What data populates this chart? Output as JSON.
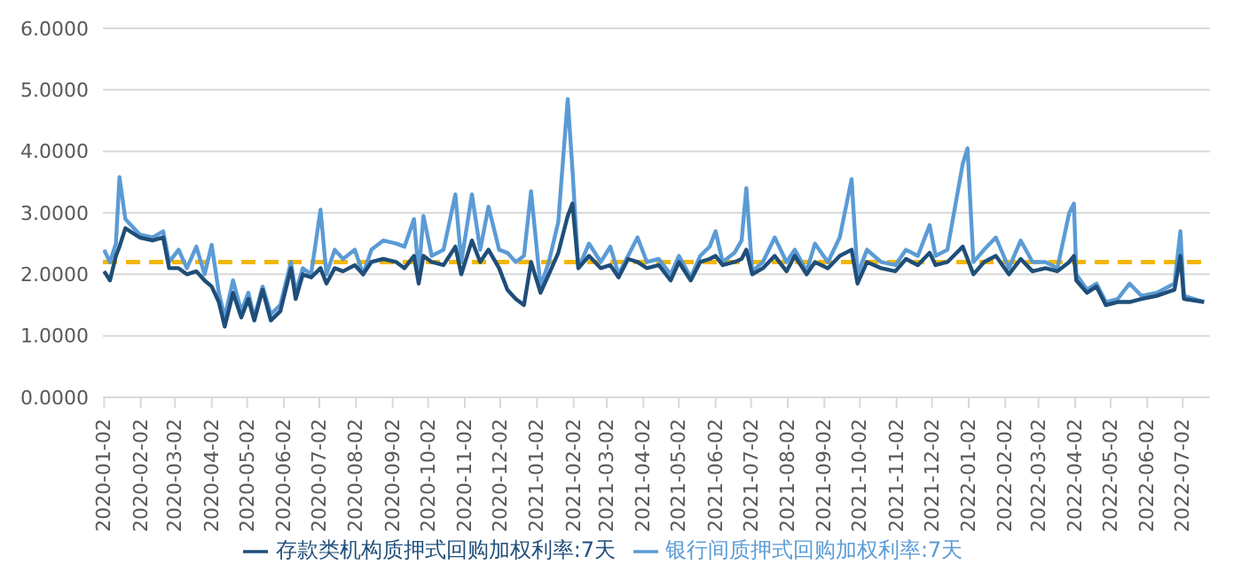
{
  "chart_data": {
    "type": "line",
    "legend": "bottom",
    "grid": "y",
    "marker": "none",
    "ylim": [
      0,
      6
    ],
    "yticks": [
      {
        "value": 0,
        "label": "0.0000"
      },
      {
        "value": 1,
        "label": "1.0000"
      },
      {
        "value": 2,
        "label": "2.0000"
      },
      {
        "value": 3,
        "label": "3.0000"
      },
      {
        "value": 4,
        "label": "4.0000"
      },
      {
        "value": 5,
        "label": "5.0000"
      },
      {
        "value": 6,
        "label": "6.0000"
      }
    ],
    "xlim": [
      "2020-01-01",
      "2022-07-25"
    ],
    "xticks": [
      "2020-01-02",
      "2020-02-02",
      "2020-03-02",
      "2020-04-02",
      "2020-05-02",
      "2020-06-02",
      "2020-07-02",
      "2020-08-02",
      "2020-09-02",
      "2020-10-02",
      "2020-11-02",
      "2020-12-02",
      "2021-01-02",
      "2021-02-02",
      "2021-03-02",
      "2021-04-02",
      "2021-05-02",
      "2021-06-02",
      "2021-07-02",
      "2021-08-02",
      "2021-09-02",
      "2021-10-02",
      "2021-11-02",
      "2021-12-02",
      "2022-01-02",
      "2022-02-02",
      "2022-03-02",
      "2022-04-02",
      "2022-05-02",
      "2022-06-02",
      "2022-07-02"
    ],
    "ref_lines": [
      {
        "axis": "y",
        "value": 2.2,
        "color": "#f2b705",
        "line_style": "dashed"
      }
    ],
    "x": [
      "2020-01-02",
      "2020-01-07",
      "2020-01-12",
      "2020-01-15",
      "2020-01-20",
      "2020-02-01",
      "2020-02-12",
      "2020-02-21",
      "2020-02-26",
      "2020-03-05",
      "2020-03-12",
      "2020-03-20",
      "2020-03-27",
      "2020-04-02",
      "2020-04-08",
      "2020-04-13",
      "2020-04-20",
      "2020-04-27",
      "2020-05-03",
      "2020-05-08",
      "2020-05-15",
      "2020-05-22",
      "2020-05-30",
      "2020-06-08",
      "2020-06-12",
      "2020-06-18",
      "2020-06-25",
      "2020-07-03",
      "2020-07-08",
      "2020-07-15",
      "2020-07-22",
      "2020-08-01",
      "2020-08-08",
      "2020-08-15",
      "2020-08-25",
      "2020-09-05",
      "2020-09-12",
      "2020-09-20",
      "2020-09-24",
      "2020-09-28",
      "2020-10-05",
      "2020-10-15",
      "2020-10-25",
      "2020-10-30",
      "2020-11-08",
      "2020-11-15",
      "2020-11-22",
      "2020-12-01",
      "2020-12-08",
      "2020-12-15",
      "2020-12-22",
      "2020-12-28",
      "2021-01-05",
      "2021-01-12",
      "2021-01-20",
      "2021-01-28",
      "2021-02-01",
      "2021-02-06",
      "2021-02-15",
      "2021-02-25",
      "2021-03-05",
      "2021-03-12",
      "2021-03-20",
      "2021-03-28",
      "2021-04-05",
      "2021-04-15",
      "2021-04-25",
      "2021-05-02",
      "2021-05-12",
      "2021-05-20",
      "2021-05-28",
      "2021-06-02",
      "2021-06-08",
      "2021-06-18",
      "2021-06-24",
      "2021-06-28",
      "2021-07-03",
      "2021-07-12",
      "2021-07-22",
      "2021-08-01",
      "2021-08-08",
      "2021-08-18",
      "2021-08-25",
      "2021-09-05",
      "2021-09-15",
      "2021-09-25",
      "2021-09-30",
      "2021-10-08",
      "2021-10-20",
      "2021-11-01",
      "2021-11-10",
      "2021-11-20",
      "2021-11-30",
      "2021-12-05",
      "2021-12-15",
      "2021-12-28",
      "2022-01-01",
      "2022-01-06",
      "2022-01-15",
      "2022-01-25",
      "2022-02-05",
      "2022-02-15",
      "2022-02-25",
      "2022-03-08",
      "2022-03-18",
      "2022-03-28",
      "2022-04-01",
      "2022-04-03",
      "2022-04-12",
      "2022-04-20",
      "2022-04-28",
      "2022-05-08",
      "2022-05-18",
      "2022-05-28",
      "2022-06-10",
      "2022-06-25",
      "2022-06-30",
      "2022-07-03",
      "2022-07-20"
    ],
    "series": [
      {
        "name": "银行间质押式回购加权利率:7天",
        "color": "#5b9bd5",
        "values": [
          2.4,
          2.2,
          2.5,
          3.58,
          2.9,
          2.65,
          2.6,
          2.7,
          2.2,
          2.4,
          2.1,
          2.45,
          2.0,
          2.48,
          1.7,
          1.3,
          1.9,
          1.4,
          1.7,
          1.3,
          1.8,
          1.35,
          1.5,
          2.2,
          1.7,
          2.1,
          2.0,
          3.05,
          2.0,
          2.4,
          2.25,
          2.4,
          2.0,
          2.4,
          2.55,
          2.5,
          2.45,
          2.9,
          2.0,
          2.95,
          2.3,
          2.4,
          3.3,
          2.2,
          3.3,
          2.4,
          3.1,
          2.4,
          2.35,
          2.2,
          2.3,
          3.35,
          1.8,
          2.2,
          2.85,
          4.85,
          3.7,
          2.1,
          2.5,
          2.2,
          2.45,
          2.0,
          2.3,
          2.6,
          2.2,
          2.25,
          2.0,
          2.3,
          1.95,
          2.3,
          2.45,
          2.7,
          2.2,
          2.35,
          2.55,
          3.4,
          2.05,
          2.2,
          2.6,
          2.2,
          2.4,
          2.05,
          2.5,
          2.2,
          2.6,
          3.55,
          2.0,
          2.4,
          2.2,
          2.15,
          2.4,
          2.3,
          2.8,
          2.3,
          2.4,
          3.8,
          4.05,
          2.2,
          2.4,
          2.6,
          2.1,
          2.55,
          2.2,
          2.2,
          2.1,
          3.0,
          3.15,
          2.0,
          1.75,
          1.85,
          1.55,
          1.6,
          1.85,
          1.65,
          1.7,
          1.85,
          2.7,
          1.65,
          1.55
        ]
      },
      {
        "name": "存款类机构质押式回购加权利率:7天",
        "color": "#1f4e79",
        "values": [
          2.05,
          1.9,
          2.3,
          2.45,
          2.75,
          2.6,
          2.55,
          2.6,
          2.1,
          2.1,
          2.0,
          2.05,
          1.9,
          1.8,
          1.55,
          1.15,
          1.7,
          1.3,
          1.6,
          1.25,
          1.75,
          1.25,
          1.4,
          2.1,
          1.6,
          2.0,
          1.95,
          2.1,
          1.85,
          2.1,
          2.05,
          2.15,
          2.0,
          2.2,
          2.25,
          2.2,
          2.1,
          2.3,
          1.85,
          2.3,
          2.2,
          2.15,
          2.45,
          2.0,
          2.55,
          2.2,
          2.4,
          2.1,
          1.75,
          1.6,
          1.5,
          2.2,
          1.7,
          2.0,
          2.35,
          2.95,
          3.15,
          2.1,
          2.3,
          2.1,
          2.15,
          1.95,
          2.25,
          2.2,
          2.1,
          2.15,
          1.9,
          2.2,
          1.9,
          2.2,
          2.25,
          2.3,
          2.15,
          2.2,
          2.25,
          2.4,
          2.0,
          2.1,
          2.3,
          2.05,
          2.3,
          2.0,
          2.2,
          2.1,
          2.3,
          2.4,
          1.85,
          2.2,
          2.1,
          2.05,
          2.25,
          2.15,
          2.35,
          2.15,
          2.2,
          2.45,
          2.25,
          2.0,
          2.2,
          2.3,
          2.0,
          2.25,
          2.05,
          2.1,
          2.05,
          2.2,
          2.3,
          1.9,
          1.7,
          1.8,
          1.5,
          1.55,
          1.55,
          1.6,
          1.65,
          1.75,
          2.3,
          1.6,
          1.55
        ]
      }
    ]
  }
}
